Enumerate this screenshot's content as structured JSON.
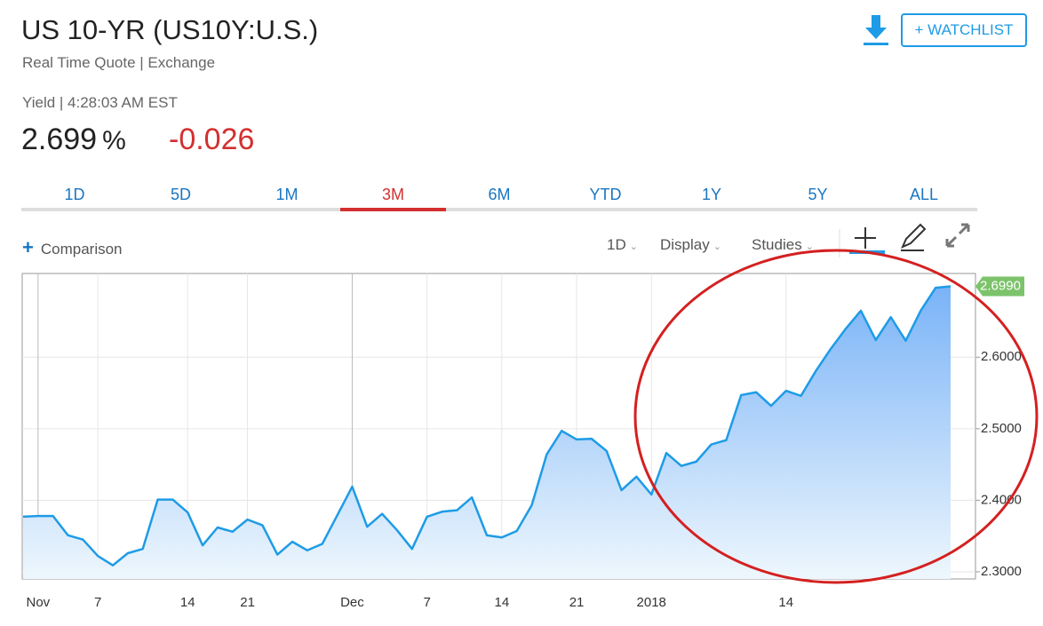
{
  "header": {
    "title": "US 10-YR (US10Y:U.S.)",
    "subtitle": "Real Time Quote | Exchange",
    "quote_time": "Yield | 4:28:03 AM EST",
    "price": "2.699",
    "price_unit": "%",
    "change": "-0.026",
    "watchlist_button": "+ WATCHLIST"
  },
  "tabs": {
    "items": [
      "1D",
      "5D",
      "1M",
      "3M",
      "6M",
      "YTD",
      "1Y",
      "5Y",
      "ALL"
    ],
    "active": "3M"
  },
  "toolbar": {
    "comparison": "Comparison",
    "interval": "1D",
    "display": "Display",
    "studies": "Studies"
  },
  "chart_data": {
    "type": "area",
    "categories": [
      null,
      "Nov",
      null,
      null,
      null,
      "7",
      null,
      null,
      null,
      null,
      null,
      "14",
      null,
      null,
      null,
      "21",
      null,
      null,
      null,
      null,
      null,
      null,
      "Dec",
      null,
      null,
      null,
      null,
      "7",
      null,
      null,
      null,
      null,
      "14",
      null,
      null,
      null,
      null,
      "21",
      null,
      null,
      null,
      null,
      "2018",
      null,
      null,
      null,
      null,
      null,
      null,
      null,
      null,
      "14",
      null,
      null,
      null,
      null,
      null,
      null,
      null,
      null,
      null,
      null,
      null
    ],
    "series": [
      {
        "name": "US10Y",
        "color": "#1e9be6",
        "values": [
          2.377,
          2.378,
          2.378,
          2.351,
          2.345,
          2.322,
          2.309,
          2.326,
          2.332,
          2.401,
          2.401,
          2.383,
          2.337,
          2.362,
          2.356,
          2.373,
          2.365,
          2.324,
          2.342,
          2.33,
          2.339,
          2.379,
          2.419,
          2.363,
          2.381,
          2.358,
          2.332,
          2.377,
          2.384,
          2.386,
          2.404,
          2.351,
          2.348,
          2.357,
          2.393,
          2.464,
          2.497,
          2.485,
          2.486,
          2.469,
          2.414,
          2.433,
          2.408,
          2.466,
          2.448,
          2.454,
          2.478,
          2.484,
          2.547,
          2.551,
          2.532,
          2.553,
          2.546,
          2.581,
          2.612,
          2.64,
          2.665,
          2.624,
          2.656,
          2.623,
          2.665,
          2.697,
          2.699
        ]
      }
    ],
    "last_value_label": "2.6990",
    "ylim": [
      2.29,
      2.717
    ],
    "yticks": [
      {
        "value": 2.3,
        "label": "2.3000"
      },
      {
        "value": 2.4,
        "label": "2.4000"
      },
      {
        "value": 2.5,
        "label": "2.5000"
      },
      {
        "value": 2.6,
        "label": "2.6000"
      }
    ],
    "grid": true
  }
}
